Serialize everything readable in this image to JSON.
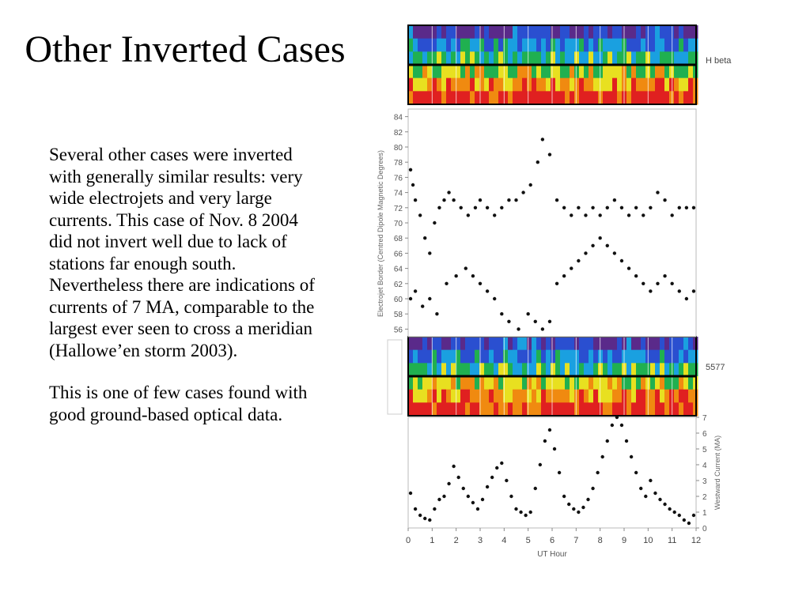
{
  "slide": {
    "title": "Other Inverted Cases",
    "paragraphs": [
      "Several other cases were inverted with generally similar results: very wide electrojets and very large currents. This case of Nov. 8 2004 did not invert well due to lack of stations far enough south. Nevertheless there are indications of currents of 7 MA, comparable to the largest ever seen to cross a meridian (Hallowe’en storm 2003).",
      "This is one of few cases found with good ground-based optical data."
    ]
  },
  "figure": {
    "keogram_top_label": "H beta",
    "keogram_bottom_label": "5577",
    "keogram_colors": [
      "#5a2a8a",
      "#2a4fd0",
      "#1aa0e0",
      "#20b050",
      "#e8e020",
      "#f08a10",
      "#e02020",
      "#101010"
    ]
  },
  "chart_data": [
    {
      "type": "scatter",
      "ylabel": "Electrojet Border (Centred Dipole Magnetic Degrees)",
      "y_ticks": [
        "84",
        "82",
        "80",
        "78",
        "76",
        "74",
        "72",
        "70",
        "68",
        "66",
        "64",
        "62",
        "60",
        "58",
        "56"
      ],
      "ylim": [
        55,
        85
      ],
      "xlim": [
        0,
        12
      ],
      "series": [
        {
          "x": [
            0.1,
            0.2,
            0.3,
            0.5,
            0.7,
            0.9,
            1.1,
            1.3,
            1.5,
            1.7,
            1.9,
            2.2,
            2.5,
            2.8,
            3.0,
            3.3,
            3.6,
            3.9,
            4.2,
            4.5,
            4.8,
            5.1,
            5.4,
            5.6,
            5.9,
            6.2,
            6.5,
            6.8,
            7.1,
            7.4,
            7.7,
            8.0,
            8.3,
            8.6,
            8.9,
            9.2,
            9.5,
            9.8,
            10.1,
            10.4,
            10.7,
            11.0,
            11.3,
            11.6,
            11.9
          ],
          "y": [
            77,
            75,
            73,
            71,
            68,
            66,
            70,
            72,
            73,
            74,
            73,
            72,
            71,
            72,
            73,
            72,
            71,
            72,
            73,
            73,
            74,
            75,
            78,
            81,
            79,
            73,
            72,
            71,
            72,
            71,
            72,
            71,
            72,
            73,
            72,
            71,
            72,
            71,
            72,
            74,
            73,
            71,
            72,
            72,
            72
          ]
        },
        {
          "x": [
            0.1,
            0.3,
            0.6,
            0.9,
            1.2,
            1.6,
            2.0,
            2.4,
            2.7,
            3.0,
            3.3,
            3.6,
            3.9,
            4.2,
            4.6,
            5.0,
            5.3,
            5.6,
            5.9,
            6.2,
            6.5,
            6.8,
            7.1,
            7.4,
            7.7,
            8.0,
            8.3,
            8.6,
            8.9,
            9.2,
            9.5,
            9.8,
            10.1,
            10.4,
            10.7,
            11.0,
            11.3,
            11.6,
            11.9
          ],
          "y": [
            60,
            61,
            59,
            60,
            58,
            62,
            63,
            64,
            63,
            62,
            61,
            60,
            58,
            57,
            56,
            58,
            57,
            56,
            57,
            62,
            63,
            64,
            65,
            66,
            67,
            68,
            67,
            66,
            65,
            64,
            63,
            62,
            61,
            62,
            63,
            62,
            61,
            60,
            61
          ]
        }
      ]
    },
    {
      "type": "scatter",
      "xlabel": "UT Hour",
      "ylabel": "Westward Current (MA)",
      "x_ticks": [
        "0",
        "1",
        "2",
        "3",
        "4",
        "5",
        "6",
        "7",
        "8",
        "9",
        "10",
        "11",
        "12"
      ],
      "y_ticks": [
        "7",
        "6",
        "5",
        "4",
        "3",
        "2",
        "1",
        "0"
      ],
      "xlim": [
        0,
        12
      ],
      "ylim": [
        0,
        7
      ],
      "series": [
        {
          "x": [
            0.1,
            0.3,
            0.5,
            0.7,
            0.9,
            1.1,
            1.3,
            1.5,
            1.7,
            1.9,
            2.1,
            2.3,
            2.5,
            2.7,
            2.9,
            3.1,
            3.3,
            3.5,
            3.7,
            3.9,
            4.1,
            4.3,
            4.5,
            4.7,
            4.9,
            5.1,
            5.3,
            5.5,
            5.7,
            5.9,
            6.1,
            6.3,
            6.5,
            6.7,
            6.9,
            7.1,
            7.3,
            7.5,
            7.7,
            7.9,
            8.1,
            8.3,
            8.5,
            8.7,
            8.9,
            9.1,
            9.3,
            9.5,
            9.7,
            9.9,
            10.1,
            10.3,
            10.5,
            10.7,
            10.9,
            11.1,
            11.3,
            11.5,
            11.7,
            11.9
          ],
          "y": [
            2.2,
            1.2,
            0.8,
            0.6,
            0.5,
            1.2,
            1.8,
            2.0,
            2.8,
            3.9,
            3.2,
            2.5,
            2.0,
            1.6,
            1.2,
            1.8,
            2.6,
            3.2,
            3.8,
            4.1,
            3.0,
            2.0,
            1.2,
            1.0,
            0.8,
            1.0,
            2.5,
            4.0,
            5.5,
            6.2,
            5.0,
            3.5,
            2.0,
            1.5,
            1.2,
            1.0,
            1.3,
            1.8,
            2.5,
            3.5,
            4.5,
            5.5,
            6.5,
            7.0,
            6.5,
            5.5,
            4.5,
            3.5,
            2.5,
            2.0,
            3.0,
            2.2,
            1.8,
            1.5,
            1.2,
            1.0,
            0.8,
            0.5,
            0.3,
            0.8
          ]
        }
      ]
    }
  ]
}
